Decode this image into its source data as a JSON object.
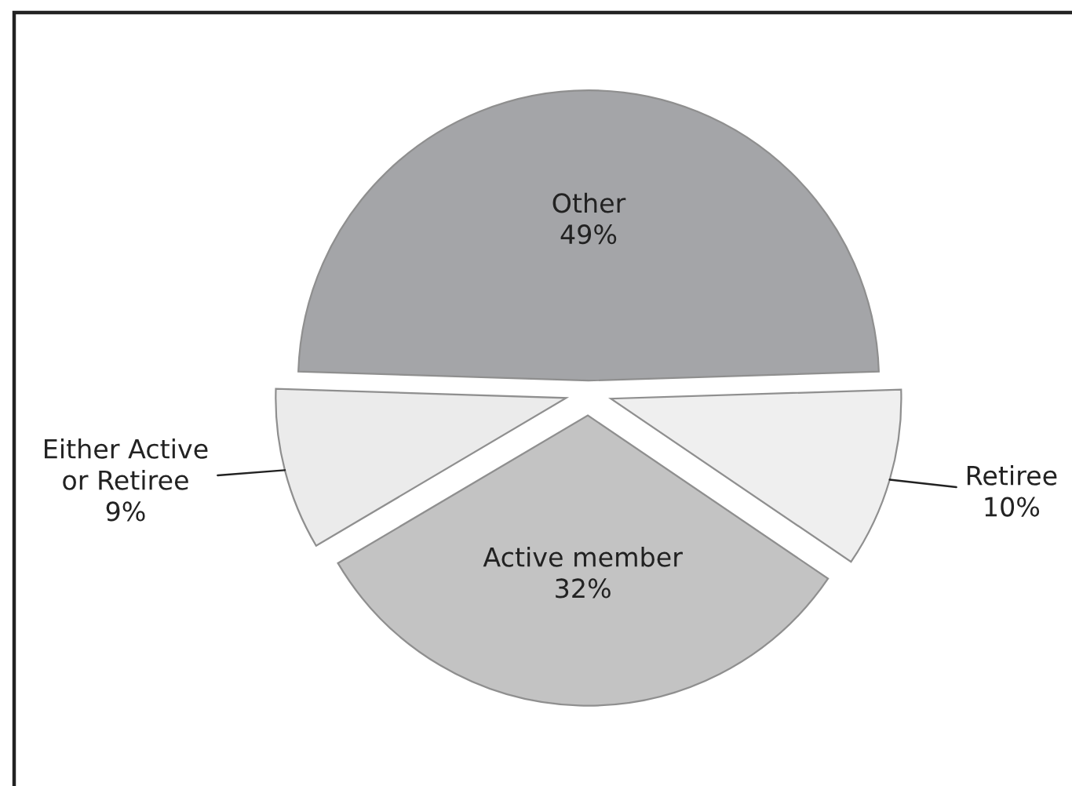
{
  "chart_data": {
    "type": "pie",
    "categories": [
      "Other",
      "Retiree",
      "Active member",
      "Either Active or Retiree"
    ],
    "values": [
      49,
      10,
      32,
      9
    ],
    "value_labels": [
      "49%",
      "10%",
      "32%",
      "9%"
    ],
    "colors": [
      "#a4a5a8",
      "#efefef",
      "#c3c3c3",
      "#ebebeb"
    ]
  }
}
